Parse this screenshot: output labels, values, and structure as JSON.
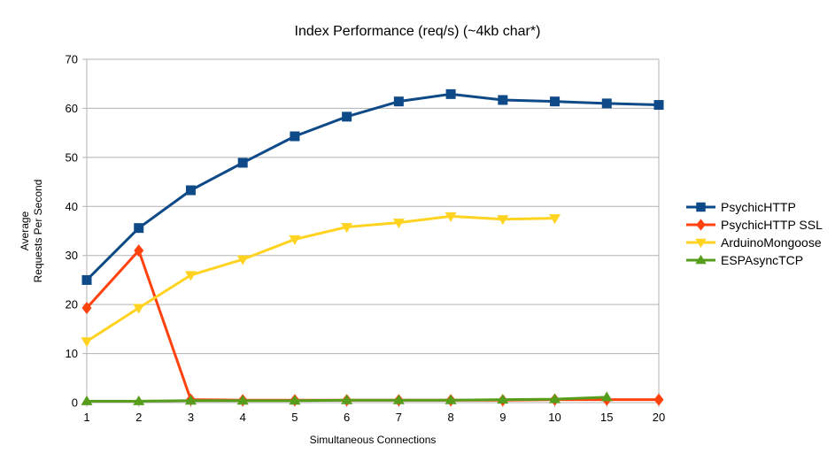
{
  "chart_data": {
    "type": "line",
    "title": "Index Performance (req/s) (~4kb char*)",
    "xlabel": "Simultaneous Connections",
    "ylabel_line1": "Average",
    "ylabel_line2": "Requests Per Second",
    "categories": [
      "1",
      "2",
      "3",
      "4",
      "5",
      "6",
      "7",
      "8",
      "9",
      "10",
      "15",
      "20"
    ],
    "y_ticks": [
      0,
      10,
      20,
      30,
      40,
      50,
      60,
      70
    ],
    "ylim": [
      0,
      70
    ],
    "grid": "horizontal",
    "legend_position": "right",
    "background_color": "#FFFFFF",
    "grid_color": "#B3B3B3",
    "text_color": "#000000",
    "series": [
      {
        "name": "PsychicHTTP",
        "color": "#0E4A87",
        "marker": "square",
        "values": [
          25.0,
          35.6,
          43.3,
          48.9,
          54.3,
          58.3,
          61.4,
          62.9,
          61.7,
          61.4,
          61.0,
          60.7
        ]
      },
      {
        "name": "PsychicHTTP SSL",
        "color": "#FF420E",
        "marker": "diamond",
        "values": [
          19.3,
          31.0,
          0.6,
          0.5,
          0.5,
          0.5,
          0.5,
          0.5,
          0.5,
          0.6,
          0.6,
          0.6
        ]
      },
      {
        "name": "ArduinoMongoose",
        "color": "#FFD320",
        "marker": "triangle-down",
        "values": [
          12.5,
          19.3,
          26.0,
          29.2,
          33.3,
          35.8,
          36.7,
          38.0,
          37.4,
          37.6,
          null,
          null
        ]
      },
      {
        "name": "ESPAsyncTCP",
        "color": "#579D1C",
        "marker": "triangle-up",
        "values": [
          0.3,
          0.3,
          0.4,
          0.4,
          0.4,
          0.5,
          0.5,
          0.5,
          0.6,
          0.7,
          1.1,
          null
        ]
      }
    ]
  }
}
